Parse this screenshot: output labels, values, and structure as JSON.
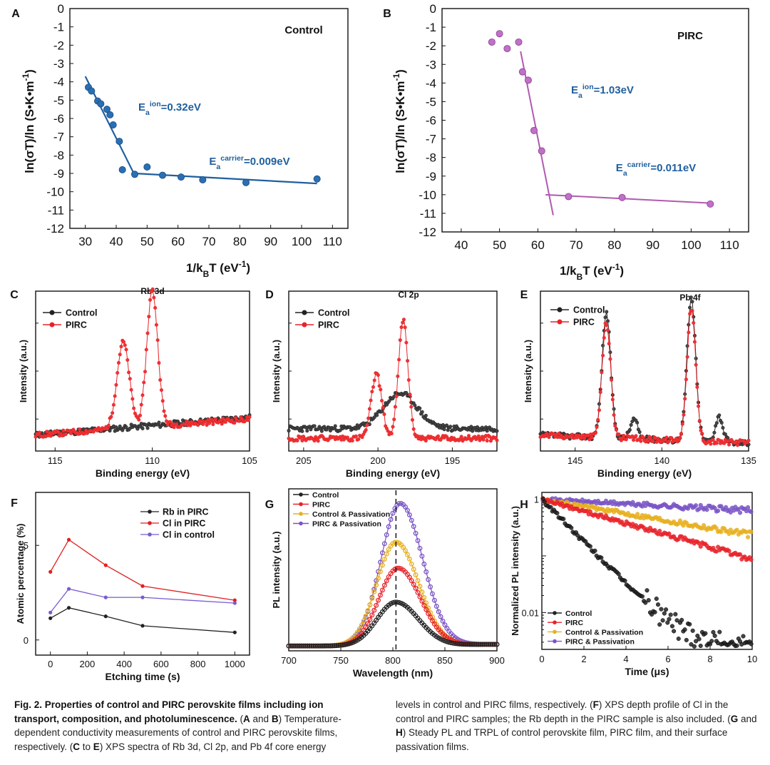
{
  "panels": {
    "A": {
      "letter": "A",
      "title": "Control",
      "xlabel": "1/k",
      "xlabel_sub": "B",
      "xlabel_tail": "T (eV",
      "xlabel_sup": "-1",
      "xlabel_end": ")",
      "ylabel": "ln(σT)/ln (S•K•m",
      "ylabel_sup": "-1",
      "ylabel_end": ")",
      "xticks": [
        30,
        40,
        50,
        60,
        70,
        80,
        90,
        100,
        110
      ],
      "yticks": [
        0,
        -1,
        -2,
        -3,
        -4,
        -5,
        -6,
        -7,
        -8,
        -9,
        -10,
        -11,
        -12
      ],
      "ann1": {
        "base": "E",
        "sub": "a",
        "sup": "ion",
        "val": "=0.32eV"
      },
      "ann2": {
        "base": "E",
        "sub": "a",
        "sup": "carrier",
        "val": "=0.009eV"
      },
      "color": "#1f5f9e"
    },
    "B": {
      "letter": "B",
      "title": "PIRC",
      "xlabel": "1/k",
      "xlabel_sub": "B",
      "xlabel_tail": "T (eV",
      "xlabel_sup": "-1",
      "xlabel_end": ")",
      "ylabel": "ln(σT)/ln (S•K•m",
      "ylabel_sup": "-1",
      "ylabel_end": ")",
      "xticks": [
        40,
        50,
        60,
        70,
        80,
        90,
        100,
        110
      ],
      "yticks": [
        0,
        -1,
        -2,
        -3,
        -4,
        -5,
        -6,
        -7,
        -8,
        -9,
        -10,
        -11,
        -12
      ],
      "ann1": {
        "base": "E",
        "sub": "a",
        "sup": "ion",
        "val": "=1.03eV"
      },
      "ann2": {
        "base": "E",
        "sub": "a",
        "sup": "carrier",
        "val": "=0.011eV"
      },
      "color": "#b05ab0"
    },
    "C": {
      "letter": "C",
      "title": "Rb 3d",
      "xlabel": "Binding energy (eV)",
      "ylabel": "Intensity (a.u.)",
      "xticks": [
        115,
        110,
        105
      ],
      "legend": [
        "Control",
        "PIRC"
      ]
    },
    "D": {
      "letter": "D",
      "title": "Cl 2p",
      "xlabel": "Binding energy (eV)",
      "ylabel": "Intensity (a.u.)",
      "xticks": [
        205,
        200,
        195
      ],
      "legend": [
        "Control",
        "PIRC"
      ]
    },
    "E": {
      "letter": "E",
      "title": "Pb 4f",
      "xlabel": "Binding energy (eV)",
      "ylabel": "Intensity (a.u.)",
      "xticks": [
        145,
        140,
        135
      ],
      "legend": [
        "Control",
        "PIRC"
      ]
    },
    "F": {
      "letter": "F",
      "xlabel": "Etching time (s)",
      "ylabel": "Atomic percentage (%)",
      "xticks": [
        0,
        200,
        400,
        600,
        800,
        1000
      ],
      "yticks": [
        0,
        5
      ],
      "legend": [
        "Rb in PIRC",
        "Cl in PIRC",
        "Cl in control"
      ]
    },
    "G": {
      "letter": "G",
      "xlabel": "Wavelength (nm)",
      "ylabel": "PL intensity (a.u.)",
      "xticks": [
        700,
        750,
        800,
        850,
        900
      ],
      "legend": [
        "Control",
        "PIRC",
        "Control & Passivation",
        "PIRC & Passivation"
      ]
    },
    "H": {
      "letter": "H",
      "xlabel": "Time (",
      "xlabel_mu": "μs",
      "xlabel_end": ")",
      "ylabel": "Normalized PL  intensity (a.u.)",
      "xticks": [
        0,
        2,
        4,
        6,
        8,
        10
      ],
      "yticks": [
        "1",
        "0.01"
      ],
      "legend": [
        "Control",
        "PIRC",
        "Control & Passivation",
        "PIRC & Passivation"
      ]
    }
  },
  "colors": {
    "control": "#222222",
    "pirc": "#e8232a",
    "ctrl_pass": "#e8b020",
    "pirc_pass": "#7a55c5",
    "blueline": "#1f5f9e",
    "purpleline": "#b05ab0"
  },
  "chart_data": [
    {
      "id": "A",
      "type": "scatter",
      "title": "Control",
      "xlabel": "1/kBT (eV-1)",
      "ylabel": "ln(σT)/ln (S•K•m-1)",
      "xlim": [
        25,
        115
      ],
      "ylim": [
        -12,
        0
      ],
      "x": [
        31,
        32,
        34,
        35,
        37,
        38,
        39,
        41,
        42,
        46,
        50,
        55,
        61,
        68,
        82,
        105
      ],
      "y": [
        -4.3,
        -4.5,
        -5.05,
        -5.2,
        -5.5,
        -5.8,
        -6.35,
        -7.25,
        -8.8,
        -9.05,
        -8.65,
        -9.1,
        -9.2,
        -9.35,
        -9.5,
        -9.3
      ],
      "fits": [
        {
          "x": [
            30,
            46
          ],
          "y": [
            -3.7,
            -9.1
          ]
        },
        {
          "x": [
            46,
            105
          ],
          "y": [
            -9.0,
            -9.55
          ]
        }
      ]
    },
    {
      "id": "B",
      "type": "scatter",
      "title": "PIRC",
      "xlabel": "1/kBT (eV-1)",
      "ylabel": "ln(σT)/ln (S•K•m-1)",
      "xlim": [
        35,
        115
      ],
      "ylim": [
        -12,
        0
      ],
      "x": [
        48,
        50,
        52,
        55,
        56,
        57.5,
        59,
        61,
        68,
        82,
        105
      ],
      "y": [
        -1.8,
        -1.35,
        -2.15,
        -1.8,
        -3.4,
        -3.85,
        -6.55,
        -7.65,
        -10.1,
        -10.15,
        -10.5
      ],
      "fits": [
        {
          "x": [
            55.5,
            64
          ],
          "y": [
            -2.3,
            -11.1
          ]
        },
        {
          "x": [
            62,
            105
          ],
          "y": [
            -10.0,
            -10.45
          ]
        }
      ]
    },
    {
      "id": "C",
      "type": "line",
      "title": "Rb 3d",
      "xlabel": "Binding energy (eV)",
      "ylabel": "Intensity (a.u.)",
      "xlim": [
        116,
        105
      ],
      "ylim": [
        0,
        1
      ],
      "series": [
        {
          "name": "Control",
          "peaks": [],
          "baseline": [
            0.1,
            0.21
          ]
        },
        {
          "name": "PIRC",
          "peaks": [
            [
              111.5,
              0.54,
              0.45
            ],
            [
              110.0,
              0.85,
              0.4
            ]
          ],
          "baseline": [
            0.1,
            0.2
          ]
        }
      ]
    },
    {
      "id": "D",
      "type": "line",
      "title": "Cl 2p",
      "xlabel": "Binding energy (eV)",
      "ylabel": "Intensity (a.u.)",
      "xlim": [
        206,
        192
      ],
      "ylim": [
        0,
        1
      ],
      "series": [
        {
          "name": "Control",
          "peaks": [
            [
              198.5,
              0.22,
              1.6
            ]
          ],
          "baseline": [
            0.14,
            0.14
          ]
        },
        {
          "name": "PIRC",
          "peaks": [
            [
              200.1,
              0.4,
              0.5
            ],
            [
              198.3,
              0.74,
              0.45
            ]
          ],
          "baseline": [
            0.08,
            0.08
          ]
        }
      ]
    },
    {
      "id": "E",
      "type": "line",
      "title": "Pb 4f",
      "xlabel": "Binding energy (eV)",
      "ylabel": "Intensity (a.u.)",
      "xlim": [
        147,
        135
      ],
      "ylim": [
        0,
        1
      ],
      "series": [
        {
          "name": "Control",
          "peaks": [
            [
              143.2,
              0.78,
              0.35
            ],
            [
              141.6,
              0.12,
              0.3
            ],
            [
              138.3,
              0.89,
              0.35
            ],
            [
              136.7,
              0.16,
              0.3
            ]
          ],
          "baseline": [
            0.1,
            0.05
          ]
        },
        {
          "name": "PIRC",
          "peaks": [
            [
              143.2,
              0.72,
              0.35
            ],
            [
              138.3,
              0.83,
              0.35
            ]
          ],
          "baseline": [
            0.1,
            0.05
          ]
        }
      ]
    },
    {
      "id": "F",
      "type": "line",
      "xlabel": "Etching time (s)",
      "ylabel": "Atomic percentage (%)",
      "xlim": [
        -80,
        1080
      ],
      "ylim": [
        -0.8,
        7.8
      ],
      "x": [
        0,
        100,
        300,
        500,
        1000
      ],
      "series": [
        {
          "name": "Rb in PIRC",
          "values": [
            1.15,
            1.7,
            1.25,
            0.75,
            0.4
          ]
        },
        {
          "name": "Cl in PIRC",
          "values": [
            3.6,
            5.3,
            3.95,
            2.85,
            2.1
          ]
        },
        {
          "name": "Cl in control",
          "values": [
            1.45,
            2.7,
            2.25,
            2.25,
            1.95
          ]
        }
      ]
    },
    {
      "id": "G",
      "type": "line",
      "xlabel": "Wavelength (nm)",
      "ylabel": "PL intensity (a.u.)",
      "xlim": [
        700,
        900
      ],
      "ylim": [
        0,
        1
      ],
      "series": [
        {
          "name": "Control",
          "peak": 803,
          "amplitude": 0.27
        },
        {
          "name": "PIRC",
          "peak": 805,
          "amplitude": 0.48
        },
        {
          "name": "Control & Passivation",
          "peak": 803,
          "amplitude": 0.64
        },
        {
          "name": "PIRC & Passivation",
          "peak": 807,
          "amplitude": 0.88
        }
      ],
      "vline": 803
    },
    {
      "id": "H",
      "type": "line",
      "xlabel": "Time (μs)",
      "ylabel": "Normalized PL intensity (a.u.)",
      "xlim": [
        0,
        10
      ],
      "ylim_log10": [
        -2.65,
        0.12
      ],
      "yscale": "log",
      "series": [
        {
          "name": "Control",
          "tau": 1.15,
          "floor": 0.0022
        },
        {
          "name": "PIRC",
          "tau": 4.1,
          "floor": 0
        },
        {
          "name": "Control & Passivation",
          "tau": 6.9,
          "floor": 0
        },
        {
          "name": "PIRC & Passivation",
          "tau": 21.5,
          "floor": 0
        }
      ]
    }
  ],
  "caption": {
    "fig": "Fig. 2. Properties of control and PIRC perovskite films including ion transport, composition, and photoluminescence.",
    "p1_open": " (",
    "p1_A": "A",
    "p1_and": " and ",
    "p1_B": "B",
    "p1_rest": ") Temperature-dependent conductivity measurements of control and PIRC perovskite films, respectively. (",
    "p1_C": "C",
    "p1_to": " to ",
    "p1_E": "E",
    "p1_tail": ") XPS spectra of Rb 3d, Cl 2p, and Pb 4f core energy",
    "p2_start": "levels in control and PIRC films, respectively. (",
    "p2_F": "F",
    "p2_mid": ") XPS depth profile of Cl in the control and PIRC samples; the Rb depth in the PIRC sample is also included. (",
    "p2_G": "G",
    "p2_and": " and ",
    "p2_H": "H",
    "p2_end": ") Steady PL and TRPL of control perovskite film, PIRC film, and their surface passivation films."
  }
}
